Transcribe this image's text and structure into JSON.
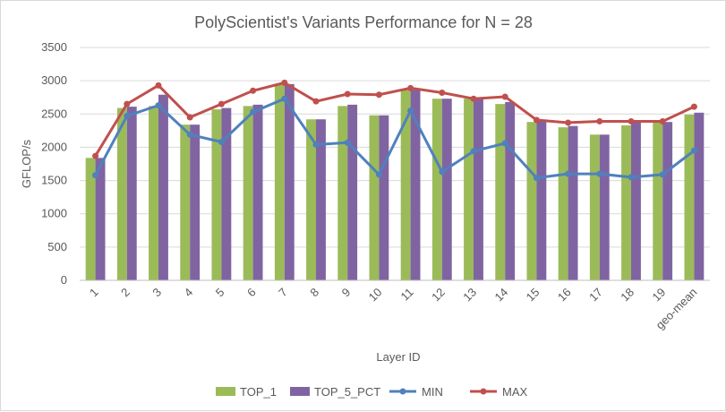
{
  "chart_data": {
    "type": "bar",
    "title": "PolyScientist's Variants Performance for N = 28",
    "xlabel": "Layer ID",
    "ylabel": "GFLOP/s",
    "ylim": [
      0,
      3500
    ],
    "ytick_step": 500,
    "yticks": [
      "0",
      "500",
      "1000",
      "1500",
      "2000",
      "2500",
      "3000",
      "3500"
    ],
    "grid": "horizontal",
    "legend_position": "bottom",
    "categories": [
      "1",
      "2",
      "3",
      "4",
      "5",
      "6",
      "7",
      "8",
      "9",
      "10",
      "11",
      "12",
      "13",
      "14",
      "15",
      "16",
      "17",
      "18",
      "19",
      "geo-mean"
    ],
    "series": [
      {
        "name": "TOP_1",
        "kind": "bar",
        "color": "#9bbb59",
        "values": [
          1840,
          2590,
          2620,
          2340,
          2570,
          2620,
          2940,
          2420,
          2620,
          2480,
          2870,
          2730,
          2730,
          2650,
          2380,
          2300,
          2190,
          2330,
          2380,
          2490
        ]
      },
      {
        "name": "TOP_5_PCT",
        "kind": "bar",
        "color": "#8064a2",
        "values": [
          1840,
          2610,
          2790,
          2340,
          2590,
          2640,
          2950,
          2420,
          2640,
          2480,
          2870,
          2730,
          2730,
          2680,
          2390,
          2320,
          2190,
          2390,
          2380,
          2520
        ]
      },
      {
        "name": "MIN",
        "kind": "line",
        "color": "#4f81bd",
        "values": [
          1580,
          2470,
          2630,
          2190,
          2080,
          2530,
          2730,
          2040,
          2070,
          1590,
          2550,
          1630,
          1940,
          2060,
          1540,
          1600,
          1600,
          1550,
          1590,
          1950
        ]
      },
      {
        "name": "MAX",
        "kind": "line",
        "color": "#c0504d",
        "values": [
          1870,
          2650,
          2930,
          2450,
          2650,
          2850,
          2970,
          2690,
          2800,
          2790,
          2890,
          2820,
          2730,
          2760,
          2410,
          2370,
          2390,
          2390,
          2390,
          2610
        ]
      }
    ]
  }
}
